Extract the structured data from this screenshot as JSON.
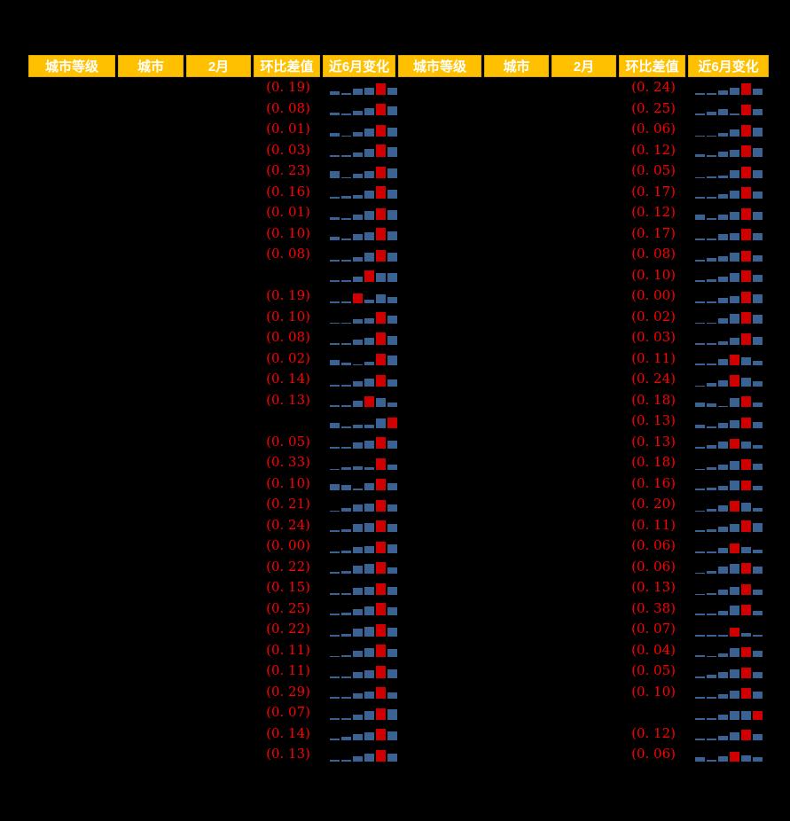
{
  "colors": {
    "page_bg": "#000000",
    "header_bg": "#FFC000",
    "header_text": "#FFFFFF",
    "value_text": "#FF0000",
    "bar_blue": "#3A6394",
    "bar_red": "#D00000"
  },
  "chart_data": {
    "type": "table",
    "title": "",
    "note": "Two side-by-side tables on black background. Columns 城市等级/城市/2月 are blank (redacted). 环比差值 shows negative values in red parentheses. 近6月变化 is a 6-bar sparkline (bar heights in px, red = highlighted bar, 0-based red index).",
    "headers": [
      "城市等级",
      "城市",
      "2月",
      "环比差值",
      "近6月变化"
    ],
    "sparkline": {
      "type": "bar",
      "bars_per_row": 6
    },
    "tables": [
      {
        "name": "left",
        "rows": [
          {
            "label": "(0. 19)",
            "value": -0.19,
            "bars": [
              4,
              2,
              7,
              8,
              13,
              8
            ],
            "red": 4
          },
          {
            "label": "(0. 08)",
            "value": -0.08,
            "bars": [
              3,
              2,
              5,
              8,
              13,
              10
            ],
            "red": 4
          },
          {
            "label": "(0. 01)",
            "value": -0.01,
            "bars": [
              4,
              1,
              5,
              9,
              13,
              10
            ],
            "red": 4
          },
          {
            "label": "(0. 03)",
            "value": -0.03,
            "bars": [
              2,
              2,
              5,
              9,
              14,
              11
            ],
            "red": 4
          },
          {
            "label": "(0. 23)",
            "value": -0.23,
            "bars": [
              8,
              1,
              5,
              8,
              13,
              11
            ],
            "red": 4
          },
          {
            "label": "(0. 16)",
            "value": -0.16,
            "bars": [
              2,
              3,
              4,
              9,
              14,
              10
            ],
            "red": 4
          },
          {
            "label": "(0. 01)",
            "value": -0.01,
            "bars": [
              3,
              2,
              6,
              10,
              13,
              11
            ],
            "red": 4
          },
          {
            "label": "(0. 10)",
            "value": -0.1,
            "bars": [
              4,
              2,
              7,
              9,
              14,
              10
            ],
            "red": 4
          },
          {
            "label": "(0. 08)",
            "value": -0.08,
            "bars": [
              2,
              2,
              5,
              10,
              13,
              10
            ],
            "red": 4
          },
          {
            "label": "",
            "value": null,
            "bars": [
              2,
              2,
              6,
              13,
              10,
              10
            ],
            "red": 3
          },
          {
            "label": "(0. 19)",
            "value": -0.19,
            "bars": [
              2,
              2,
              11,
              4,
              10,
              7
            ],
            "red": 2
          },
          {
            "label": "(0. 10)",
            "value": -0.1,
            "bars": [
              1,
              1,
              5,
              6,
              13,
              9
            ],
            "red": 4
          },
          {
            "label": "(0. 08)",
            "value": -0.08,
            "bars": [
              2,
              2,
              6,
              8,
              14,
              10
            ],
            "red": 4
          },
          {
            "label": "(0. 02)",
            "value": -0.02,
            "bars": [
              6,
              3,
              1,
              4,
              13,
              11
            ],
            "red": 4
          },
          {
            "label": "(0. 14)",
            "value": -0.14,
            "bars": [
              2,
              2,
              6,
              9,
              13,
              8
            ],
            "red": 4
          },
          {
            "label": "(0. 13)",
            "value": -0.13,
            "bars": [
              2,
              2,
              7,
              12,
              10,
              5
            ],
            "red": 3
          },
          {
            "label": "",
            "value": null,
            "bars": [
              6,
              2,
              4,
              4,
              11,
              12
            ],
            "red": 5
          },
          {
            "label": "(0. 05)",
            "value": -0.05,
            "bars": [
              2,
              2,
              7,
              9,
              13,
              9
            ],
            "red": 4
          },
          {
            "label": "(0. 33)",
            "value": -0.33,
            "bars": [
              1,
              3,
              4,
              3,
              13,
              6
            ],
            "red": 4
          },
          {
            "label": "(0. 10)",
            "value": -0.1,
            "bars": [
              7,
              6,
              2,
              8,
              13,
              8
            ],
            "red": 4
          },
          {
            "label": "(0. 21)",
            "value": -0.21,
            "bars": [
              1,
              4,
              8,
              9,
              13,
              8
            ],
            "red": 4
          },
          {
            "label": "(0. 24)",
            "value": -0.24,
            "bars": [
              2,
              3,
              9,
              10,
              13,
              9
            ],
            "red": 4
          },
          {
            "label": "(0. 00)",
            "value": 0.0,
            "bars": [
              2,
              3,
              7,
              8,
              13,
              10
            ],
            "red": 4
          },
          {
            "label": "(0. 22)",
            "value": -0.22,
            "bars": [
              2,
              3,
              9,
              11,
              13,
              7
            ],
            "red": 4
          },
          {
            "label": "(0. 15)",
            "value": -0.15,
            "bars": [
              2,
              2,
              8,
              9,
              13,
              9
            ],
            "red": 4
          },
          {
            "label": "(0. 25)",
            "value": -0.25,
            "bars": [
              2,
              3,
              7,
              10,
              14,
              9
            ],
            "red": 4
          },
          {
            "label": "(0. 22)",
            "value": -0.22,
            "bars": [
              2,
              3,
              9,
              11,
              14,
              10
            ],
            "red": 4
          },
          {
            "label": "(0. 11)",
            "value": -0.11,
            "bars": [
              1,
              2,
              7,
              10,
              14,
              9
            ],
            "red": 4
          },
          {
            "label": "(0. 11)",
            "value": -0.11,
            "bars": [
              2,
              2,
              7,
              9,
              14,
              10
            ],
            "red": 4
          },
          {
            "label": "(0. 29)",
            "value": -0.29,
            "bars": [
              2,
              2,
              6,
              8,
              13,
              7
            ],
            "red": 4
          },
          {
            "label": "(0. 07)",
            "value": -0.07,
            "bars": [
              2,
              2,
              6,
              10,
              13,
              12
            ],
            "red": 4
          },
          {
            "label": "(0. 14)",
            "value": -0.14,
            "bars": [
              2,
              4,
              7,
              9,
              13,
              10
            ],
            "red": 4
          },
          {
            "label": "(0. 13)",
            "value": -0.13,
            "bars": [
              2,
              2,
              6,
              9,
              13,
              9
            ],
            "red": 4
          }
        ]
      },
      {
        "name": "right",
        "rows": [
          {
            "label": "(0. 24)",
            "value": -0.24,
            "bars": [
              2,
              2,
              5,
              8,
              13,
              7
            ],
            "red": 4
          },
          {
            "label": "(0. 25)",
            "value": -0.25,
            "bars": [
              2,
              4,
              7,
              2,
              12,
              7
            ],
            "red": 4
          },
          {
            "label": "(0. 06)",
            "value": -0.06,
            "bars": [
              1,
              1,
              4,
              8,
              13,
              10
            ],
            "red": 4
          },
          {
            "label": "(0. 12)",
            "value": -0.12,
            "bars": [
              3,
              2,
              6,
              8,
              13,
              10
            ],
            "red": 4
          },
          {
            "label": "(0. 05)",
            "value": -0.05,
            "bars": [
              1,
              2,
              3,
              9,
              13,
              9
            ],
            "red": 4
          },
          {
            "label": "(0. 17)",
            "value": -0.17,
            "bars": [
              2,
              2,
              5,
              9,
              13,
              8
            ],
            "red": 4
          },
          {
            "label": "(0. 12)",
            "value": -0.12,
            "bars": [
              6,
              2,
              6,
              9,
              13,
              9
            ],
            "red": 4
          },
          {
            "label": "(0. 17)",
            "value": -0.17,
            "bars": [
              2,
              2,
              7,
              8,
              13,
              8
            ],
            "red": 4
          },
          {
            "label": "(0. 08)",
            "value": -0.08,
            "bars": [
              2,
              4,
              6,
              10,
              12,
              7
            ],
            "red": 4
          },
          {
            "label": "(0. 10)",
            "value": -0.1,
            "bars": [
              2,
              3,
              6,
              10,
              13,
              8
            ],
            "red": 4
          },
          {
            "label": "(0. 00)",
            "value": 0.0,
            "bars": [
              2,
              2,
              6,
              8,
              13,
              10
            ],
            "red": 4
          },
          {
            "label": "(0. 02)",
            "value": -0.02,
            "bars": [
              1,
              1,
              6,
              11,
              13,
              10
            ],
            "red": 4
          },
          {
            "label": "(0. 03)",
            "value": -0.03,
            "bars": [
              2,
              2,
              4,
              8,
              13,
              9
            ],
            "red": 4
          },
          {
            "label": "(0. 11)",
            "value": -0.11,
            "bars": [
              2,
              2,
              7,
              12,
              9,
              5
            ],
            "red": 3
          },
          {
            "label": "(0. 24)",
            "value": -0.24,
            "bars": [
              1,
              4,
              7,
              13,
              10,
              6
            ],
            "red": 3
          },
          {
            "label": "(0. 18)",
            "value": -0.18,
            "bars": [
              5,
              4,
              1,
              10,
              12,
              5
            ],
            "red": 4
          },
          {
            "label": "(0. 13)",
            "value": -0.13,
            "bars": [
              4,
              2,
              6,
              9,
              12,
              7
            ],
            "red": 4
          },
          {
            "label": "(0. 13)",
            "value": -0.13,
            "bars": [
              2,
              4,
              8,
              11,
              8,
              4
            ],
            "red": 3
          },
          {
            "label": "(0. 18)",
            "value": -0.18,
            "bars": [
              1,
              3,
              6,
              10,
              12,
              7
            ],
            "red": 4
          },
          {
            "label": "(0. 16)",
            "value": -0.16,
            "bars": [
              2,
              3,
              5,
              11,
              11,
              5
            ],
            "red": 4
          },
          {
            "label": "(0. 20)",
            "value": -0.2,
            "bars": [
              1,
              3,
              7,
              12,
              10,
              4
            ],
            "red": 3
          },
          {
            "label": "(0. 11)",
            "value": -0.11,
            "bars": [
              2,
              3,
              6,
              9,
              13,
              10
            ],
            "red": 4
          },
          {
            "label": "(0. 06)",
            "value": -0.06,
            "bars": [
              2,
              2,
              6,
              11,
              7,
              4
            ],
            "red": 3
          },
          {
            "label": "(0. 06)",
            "value": -0.06,
            "bars": [
              1,
              3,
              8,
              11,
              12,
              8
            ],
            "red": 4
          },
          {
            "label": "(0. 13)",
            "value": -0.13,
            "bars": [
              1,
              2,
              6,
              9,
              12,
              6
            ],
            "red": 4
          },
          {
            "label": "(0. 38)",
            "value": -0.38,
            "bars": [
              2,
              2,
              5,
              11,
              12,
              5
            ],
            "red": 4
          },
          {
            "label": "(0. 07)",
            "value": -0.07,
            "bars": [
              2,
              2,
              2,
              10,
              4,
              2
            ],
            "red": 3
          },
          {
            "label": "(0. 04)",
            "value": -0.04,
            "bars": [
              2,
              1,
              4,
              10,
              11,
              7
            ],
            "red": 4
          },
          {
            "label": "(0. 05)",
            "value": -0.05,
            "bars": [
              2,
              4,
              7,
              10,
              12,
              7
            ],
            "red": 4
          },
          {
            "label": "(0. 10)",
            "value": -0.1,
            "bars": [
              2,
              2,
              5,
              9,
              12,
              8
            ],
            "red": 4
          },
          {
            "label": "",
            "value": null,
            "bars": [
              2,
              2,
              6,
              10,
              10,
              10
            ],
            "red": 5
          },
          {
            "label": "(0. 12)",
            "value": -0.12,
            "bars": [
              2,
              2,
              5,
              9,
              12,
              7
            ],
            "red": 4
          },
          {
            "label": "(0. 06)",
            "value": -0.06,
            "bars": [
              5,
              2,
              6,
              11,
              7,
              5
            ],
            "red": 3
          }
        ]
      }
    ]
  }
}
